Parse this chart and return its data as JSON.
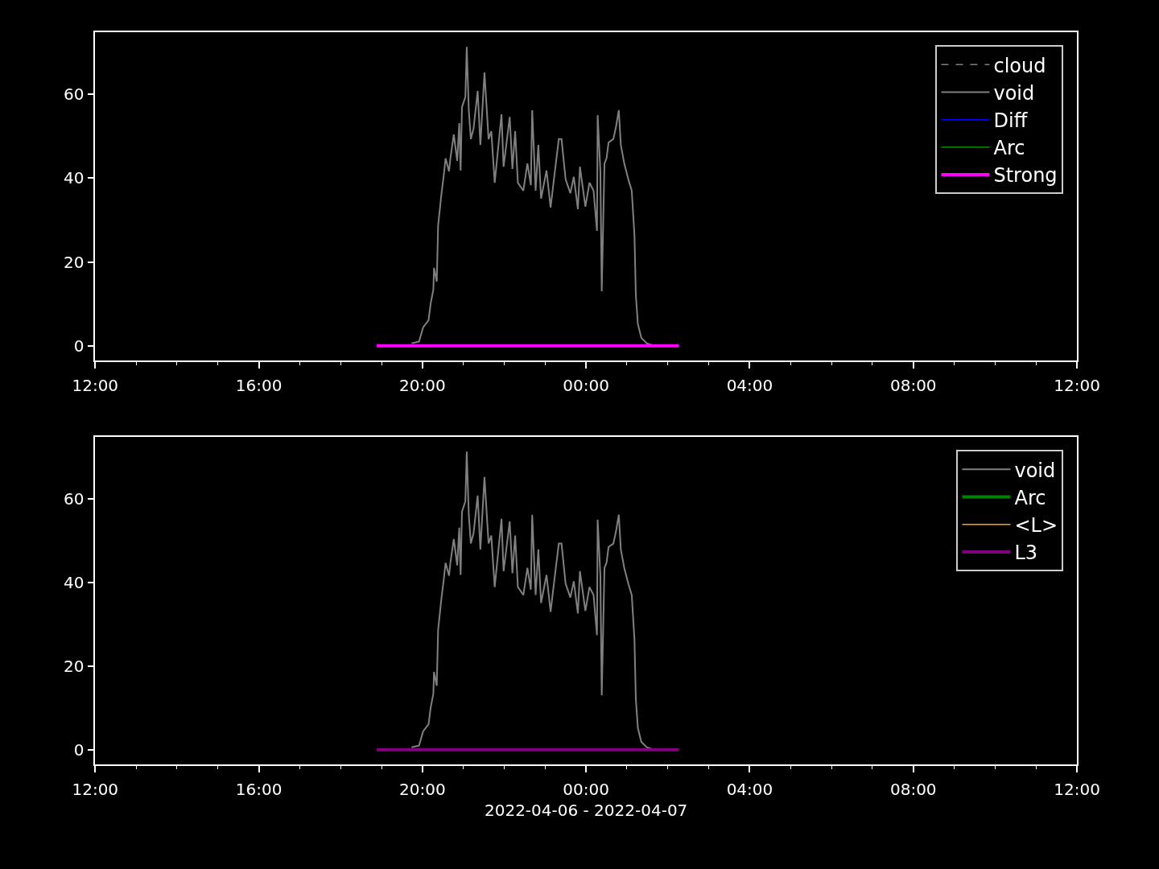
{
  "chart_data": [
    {
      "type": "line",
      "legend": "top right",
      "grid": false,
      "xlim": [
        "2022-04-06T12:00",
        "2022-04-07T12:00"
      ],
      "xticks": [
        {
          "value": "2022-04-06T12:00",
          "label": "12:00"
        },
        {
          "value": "2022-04-06T13:00",
          "label": null
        },
        {
          "value": "2022-04-06T14:00",
          "label": null
        },
        {
          "value": "2022-04-06T15:00",
          "label": null
        },
        {
          "value": "2022-04-06T16:00",
          "label": "16:00"
        },
        {
          "value": "2022-04-06T17:00",
          "label": null
        },
        {
          "value": "2022-04-06T18:00",
          "label": null
        },
        {
          "value": "2022-04-06T19:00",
          "label": null
        },
        {
          "value": "2022-04-06T20:00",
          "label": "20:00"
        },
        {
          "value": "2022-04-06T21:00",
          "label": null
        },
        {
          "value": "2022-04-06T22:00",
          "label": null
        },
        {
          "value": "2022-04-06T23:00",
          "label": null
        },
        {
          "value": "2022-04-07T00:00",
          "label": "00:00"
        },
        {
          "value": "2022-04-07T01:00",
          "label": null
        },
        {
          "value": "2022-04-07T02:00",
          "label": null
        },
        {
          "value": "2022-04-07T03:00",
          "label": null
        },
        {
          "value": "2022-04-07T04:00",
          "label": "04:00"
        },
        {
          "value": "2022-04-07T05:00",
          "label": null
        },
        {
          "value": "2022-04-07T06:00",
          "label": null
        },
        {
          "value": "2022-04-07T07:00",
          "label": null
        },
        {
          "value": "2022-04-07T08:00",
          "label": "08:00"
        },
        {
          "value": "2022-04-07T09:00",
          "label": null
        },
        {
          "value": "2022-04-07T10:00",
          "label": null
        },
        {
          "value": "2022-04-07T11:00",
          "label": null
        },
        {
          "value": "2022-04-07T12:00",
          "label": "12:00"
        }
      ],
      "ylim": [
        -3.5,
        74.8
      ],
      "yticks": [
        0,
        20,
        40,
        60
      ],
      "series": [
        {
          "name": "cloud",
          "color": "#808080",
          "line_style": "dashed"
        },
        {
          "name": "void",
          "color": "#808080",
          "line_style": "solid",
          "x": [
            "2022-04-06T19:44",
            "2022-04-06T19:55",
            "2022-04-06T20:01",
            "2022-04-06T20:09",
            "2022-04-06T20:12",
            "2022-04-06T20:16",
            "2022-04-06T20:17",
            "2022-04-06T20:21",
            "2022-04-06T20:23",
            "2022-04-06T20:28",
            "2022-04-06T20:31",
            "2022-04-06T20:34",
            "2022-04-06T20:39",
            "2022-04-06T20:41",
            "2022-04-06T20:46",
            "2022-04-06T20:51",
            "2022-04-06T20:54",
            "2022-04-06T20:56",
            "2022-04-06T20:58",
            "2022-04-06T21:03",
            "2022-04-06T21:05",
            "2022-04-06T21:08",
            "2022-04-06T21:11",
            "2022-04-06T21:15",
            "2022-04-06T21:21",
            "2022-04-06T21:25",
            "2022-04-06T21:31",
            "2022-04-06T21:37",
            "2022-04-06T21:41",
            "2022-04-06T21:46",
            "2022-04-06T21:56",
            "2022-04-06T21:59",
            "2022-04-06T22:03",
            "2022-04-06T22:08",
            "2022-04-06T22:12",
            "2022-04-06T22:16",
            "2022-04-06T22:20",
            "2022-04-06T22:28",
            "2022-04-06T22:34",
            "2022-04-06T22:39",
            "2022-04-06T22:41",
            "2022-04-06T22:46",
            "2022-04-06T22:50",
            "2022-04-06T22:54",
            "2022-04-06T23:02",
            "2022-04-06T23:08",
            "2022-04-06T23:13",
            "2022-04-06T23:20",
            "2022-04-06T23:24",
            "2022-04-06T23:30",
            "2022-04-06T23:37",
            "2022-04-06T23:42",
            "2022-04-06T23:48",
            "2022-04-06T23:51",
            "2022-04-06T23:59",
            "2022-04-07T00:05",
            "2022-04-07T00:11",
            "2022-04-07T00:16",
            "2022-04-07T00:17",
            "2022-04-07T00:21",
            "2022-04-07T00:23",
            "2022-04-07T00:27",
            "2022-04-07T00:30",
            "2022-04-07T00:33",
            "2022-04-07T00:40",
            "2022-04-07T00:44",
            "2022-04-07T00:48",
            "2022-04-07T00:51",
            "2022-04-07T00:56",
            "2022-04-07T01:02",
            "2022-04-07T01:07",
            "2022-04-07T01:11",
            "2022-04-07T01:13",
            "2022-04-07T01:16",
            "2022-04-07T01:21",
            "2022-04-07T01:29",
            "2022-04-07T01:36"
          ],
          "values": [
            0.6,
            1,
            4.4,
            6.1,
            10,
            13.4,
            18.6,
            15.3,
            28.7,
            36.4,
            40.3,
            44.7,
            41.6,
            44.7,
            50.4,
            44.1,
            53.1,
            41.8,
            56.9,
            59.4,
            71.3,
            56.2,
            49.3,
            51.8,
            60.8,
            47.9,
            65.2,
            49.3,
            51.2,
            38.9,
            55.2,
            42.7,
            47.9,
            54.6,
            42.2,
            51.2,
            38.9,
            37,
            43.5,
            38.3,
            56.2,
            37,
            47.9,
            35.1,
            41.8,
            33,
            39.9,
            49.3,
            49.3,
            39.7,
            36.4,
            40.3,
            32.6,
            42.7,
            33.2,
            38.9,
            37,
            27.4,
            55,
            41.6,
            13,
            43.5,
            44.7,
            48.5,
            49.3,
            52.3,
            56.2,
            47.9,
            43.5,
            39.7,
            37,
            26.3,
            12.1,
            5.2,
            1.9,
            0.6,
            0.2
          ]
        },
        {
          "name": "Diff",
          "color": "#0000ff",
          "line_style": "solid"
        },
        {
          "name": "Arc",
          "color": "#008000",
          "line_style": "solid"
        },
        {
          "name": "Strong",
          "color": "#ff00ff",
          "line_style": "solid",
          "x": [
            "2022-04-06T18:53",
            "2022-04-07T02:16"
          ],
          "values": [
            0,
            0
          ]
        }
      ]
    },
    {
      "type": "line",
      "legend": "top right",
      "grid": false,
      "xlabel": "2022-04-06 - 2022-04-07",
      "xlim": [
        "2022-04-06T12:00",
        "2022-04-07T12:00"
      ],
      "xticks": [
        {
          "value": "2022-04-06T12:00",
          "label": "12:00"
        },
        {
          "value": "2022-04-06T13:00",
          "label": null
        },
        {
          "value": "2022-04-06T14:00",
          "label": null
        },
        {
          "value": "2022-04-06T15:00",
          "label": null
        },
        {
          "value": "2022-04-06T16:00",
          "label": "16:00"
        },
        {
          "value": "2022-04-06T17:00",
          "label": null
        },
        {
          "value": "2022-04-06T18:00",
          "label": null
        },
        {
          "value": "2022-04-06T19:00",
          "label": null
        },
        {
          "value": "2022-04-06T20:00",
          "label": "20:00"
        },
        {
          "value": "2022-04-06T21:00",
          "label": null
        },
        {
          "value": "2022-04-06T22:00",
          "label": null
        },
        {
          "value": "2022-04-06T23:00",
          "label": null
        },
        {
          "value": "2022-04-07T00:00",
          "label": "00:00"
        },
        {
          "value": "2022-04-07T01:00",
          "label": null
        },
        {
          "value": "2022-04-07T02:00",
          "label": null
        },
        {
          "value": "2022-04-07T03:00",
          "label": null
        },
        {
          "value": "2022-04-07T04:00",
          "label": "04:00"
        },
        {
          "value": "2022-04-07T05:00",
          "label": null
        },
        {
          "value": "2022-04-07T06:00",
          "label": null
        },
        {
          "value": "2022-04-07T07:00",
          "label": null
        },
        {
          "value": "2022-04-07T08:00",
          "label": "08:00"
        },
        {
          "value": "2022-04-07T09:00",
          "label": null
        },
        {
          "value": "2022-04-07T10:00",
          "label": null
        },
        {
          "value": "2022-04-07T11:00",
          "label": null
        },
        {
          "value": "2022-04-07T12:00",
          "label": "12:00"
        }
      ],
      "ylim": [
        -3.5,
        74.8
      ],
      "yticks": [
        0,
        20,
        40,
        60
      ],
      "series": [
        {
          "name": "void",
          "color": "#808080",
          "line_style": "solid",
          "x": [
            "2022-04-06T19:44",
            "2022-04-06T19:55",
            "2022-04-06T20:01",
            "2022-04-06T20:09",
            "2022-04-06T20:12",
            "2022-04-06T20:16",
            "2022-04-06T20:17",
            "2022-04-06T20:21",
            "2022-04-06T20:23",
            "2022-04-06T20:28",
            "2022-04-06T20:31",
            "2022-04-06T20:34",
            "2022-04-06T20:39",
            "2022-04-06T20:41",
            "2022-04-06T20:46",
            "2022-04-06T20:51",
            "2022-04-06T20:54",
            "2022-04-06T20:56",
            "2022-04-06T20:58",
            "2022-04-06T21:03",
            "2022-04-06T21:05",
            "2022-04-06T21:08",
            "2022-04-06T21:11",
            "2022-04-06T21:15",
            "2022-04-06T21:21",
            "2022-04-06T21:25",
            "2022-04-06T21:31",
            "2022-04-06T21:37",
            "2022-04-06T21:41",
            "2022-04-06T21:46",
            "2022-04-06T21:56",
            "2022-04-06T21:59",
            "2022-04-06T22:03",
            "2022-04-06T22:08",
            "2022-04-06T22:12",
            "2022-04-06T22:16",
            "2022-04-06T22:20",
            "2022-04-06T22:28",
            "2022-04-06T22:34",
            "2022-04-06T22:39",
            "2022-04-06T22:41",
            "2022-04-06T22:46",
            "2022-04-06T22:50",
            "2022-04-06T22:54",
            "2022-04-06T23:02",
            "2022-04-06T23:08",
            "2022-04-06T23:13",
            "2022-04-06T23:20",
            "2022-04-06T23:24",
            "2022-04-06T23:30",
            "2022-04-06T23:37",
            "2022-04-06T23:42",
            "2022-04-06T23:48",
            "2022-04-06T23:51",
            "2022-04-06T23:59",
            "2022-04-07T00:05",
            "2022-04-07T00:11",
            "2022-04-07T00:16",
            "2022-04-07T00:17",
            "2022-04-07T00:21",
            "2022-04-07T00:23",
            "2022-04-07T00:27",
            "2022-04-07T00:30",
            "2022-04-07T00:33",
            "2022-04-07T00:40",
            "2022-04-07T00:44",
            "2022-04-07T00:48",
            "2022-04-07T00:51",
            "2022-04-07T00:56",
            "2022-04-07T01:02",
            "2022-04-07T01:07",
            "2022-04-07T01:11",
            "2022-04-07T01:13",
            "2022-04-07T01:16",
            "2022-04-07T01:21",
            "2022-04-07T01:29",
            "2022-04-07T01:36"
          ],
          "values": [
            0.6,
            1,
            4.4,
            6.1,
            10,
            13.4,
            18.6,
            15.3,
            28.7,
            36.4,
            40.3,
            44.7,
            41.6,
            44.7,
            50.4,
            44.1,
            53.1,
            41.8,
            56.9,
            59.4,
            71.3,
            56.2,
            49.3,
            51.8,
            60.8,
            47.9,
            65.2,
            49.3,
            51.2,
            38.9,
            55.2,
            42.7,
            47.9,
            54.6,
            42.2,
            51.2,
            38.9,
            37,
            43.5,
            38.3,
            56.2,
            37,
            47.9,
            35.1,
            41.8,
            33,
            39.9,
            49.3,
            49.3,
            39.7,
            36.4,
            40.3,
            32.6,
            42.7,
            33.2,
            38.9,
            37,
            27.4,
            55,
            41.6,
            13,
            43.5,
            44.7,
            48.5,
            49.3,
            52.3,
            56.2,
            47.9,
            43.5,
            39.7,
            37,
            26.3,
            12.1,
            5.2,
            1.9,
            0.6,
            0.2
          ]
        },
        {
          "name": "Arc",
          "color": "#008000",
          "line_style": "solid"
        },
        {
          "name": "<L>",
          "color": "#ffa500",
          "line_style": "solid"
        },
        {
          "name": "L3",
          "color": "#800080",
          "line_style": "solid",
          "x": [
            "2022-04-06T18:53",
            "2022-04-07T02:16"
          ],
          "values": [
            0,
            0
          ]
        }
      ]
    }
  ]
}
